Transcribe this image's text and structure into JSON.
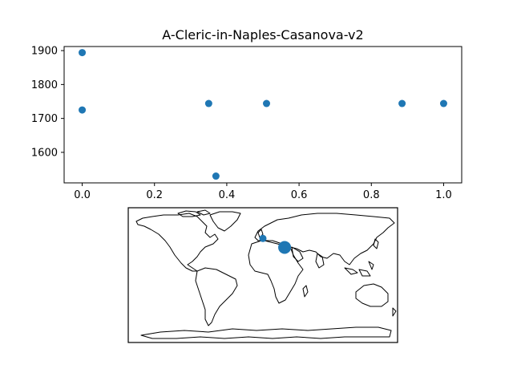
{
  "chart_data": [
    {
      "type": "scatter",
      "title": "A-Cleric-in-Naples-Casanova-v2",
      "xlabel": "",
      "ylabel": "",
      "xlim": [
        -0.05,
        1.05
      ],
      "ylim": [
        1510,
        1912
      ],
      "grid": false,
      "xticks": [
        0.0,
        0.2,
        0.4,
        0.6,
        0.8,
        1.0
      ],
      "xtick_labels": [
        "0.0",
        "0.2",
        "0.4",
        "0.6",
        "0.8",
        "1.0"
      ],
      "yticks": [
        1600,
        1700,
        1800,
        1900
      ],
      "ytick_labels": [
        "1600",
        "1700",
        "1800",
        "1900"
      ],
      "marker_color": "#1f77b4",
      "points": [
        {
          "x": 0.0,
          "y": 1894
        },
        {
          "x": 0.0,
          "y": 1725
        },
        {
          "x": 0.35,
          "y": 1744
        },
        {
          "x": 0.37,
          "y": 1530
        },
        {
          "x": 0.51,
          "y": 1744
        },
        {
          "x": 0.885,
          "y": 1744
        },
        {
          "x": 1.0,
          "y": 1744
        }
      ]
    },
    {
      "type": "scatter",
      "title": "",
      "projection": "plate-carree world map with coastlines",
      "xlim": [
        -180,
        180
      ],
      "ylim": [
        -90,
        90
      ],
      "marker_color": "#1f77b4",
      "points": [
        {
          "lon": 0,
          "lat": 49,
          "size": "small"
        },
        {
          "lon": 29,
          "lat": 37,
          "size": "large"
        }
      ]
    }
  ]
}
